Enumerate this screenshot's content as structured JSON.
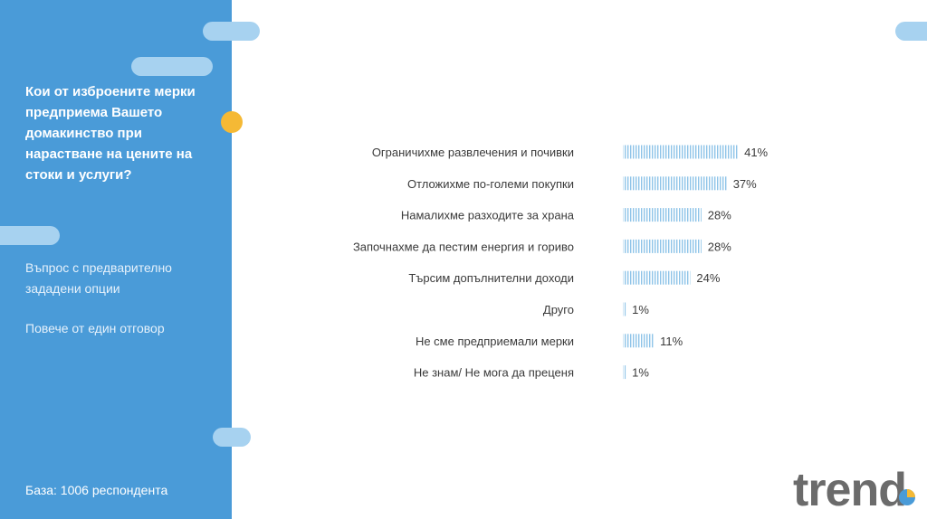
{
  "sidebar": {
    "question": "Кои от изброените мерки предприема Вашето домакинство при нарастване на цените на стоки и услуги?",
    "note1": "Въпрос с предварително зададени опции",
    "note2": "Повече от един отговор",
    "base": "База:  1006 респондента"
  },
  "logo": {
    "text": "trend"
  },
  "colors": {
    "sidebar": "#4a9bd8",
    "pill": "#a7d2f0",
    "accent_dot": "#f5b935",
    "bar_stripe": "#8ec4e8",
    "logo_gray": "#6b6b6b",
    "logo_blue": "#4a9bd8",
    "logo_orange": "#f5b935"
  },
  "chart_data": {
    "type": "bar",
    "orientation": "horizontal",
    "categories": [
      "Ограничихме развлечения и почивки",
      "Отложихме по-големи покупки",
      "Намалихме разходите за храна",
      "Започнахме да пестим енергия и гориво",
      "Търсим допълнителни доходи",
      "Друго",
      "Не сме предприемали мерки",
      "Не знам/ Не мога да преценя"
    ],
    "values": [
      41,
      37,
      28,
      28,
      24,
      1,
      11,
      1
    ],
    "value_labels": [
      "41%",
      "37%",
      "28%",
      "28%",
      "24%",
      "1%",
      "11%",
      "1%"
    ],
    "title": "",
    "xlabel": "",
    "ylabel": "",
    "xlim": [
      0,
      100
    ],
    "grid": false,
    "legend": "none"
  }
}
